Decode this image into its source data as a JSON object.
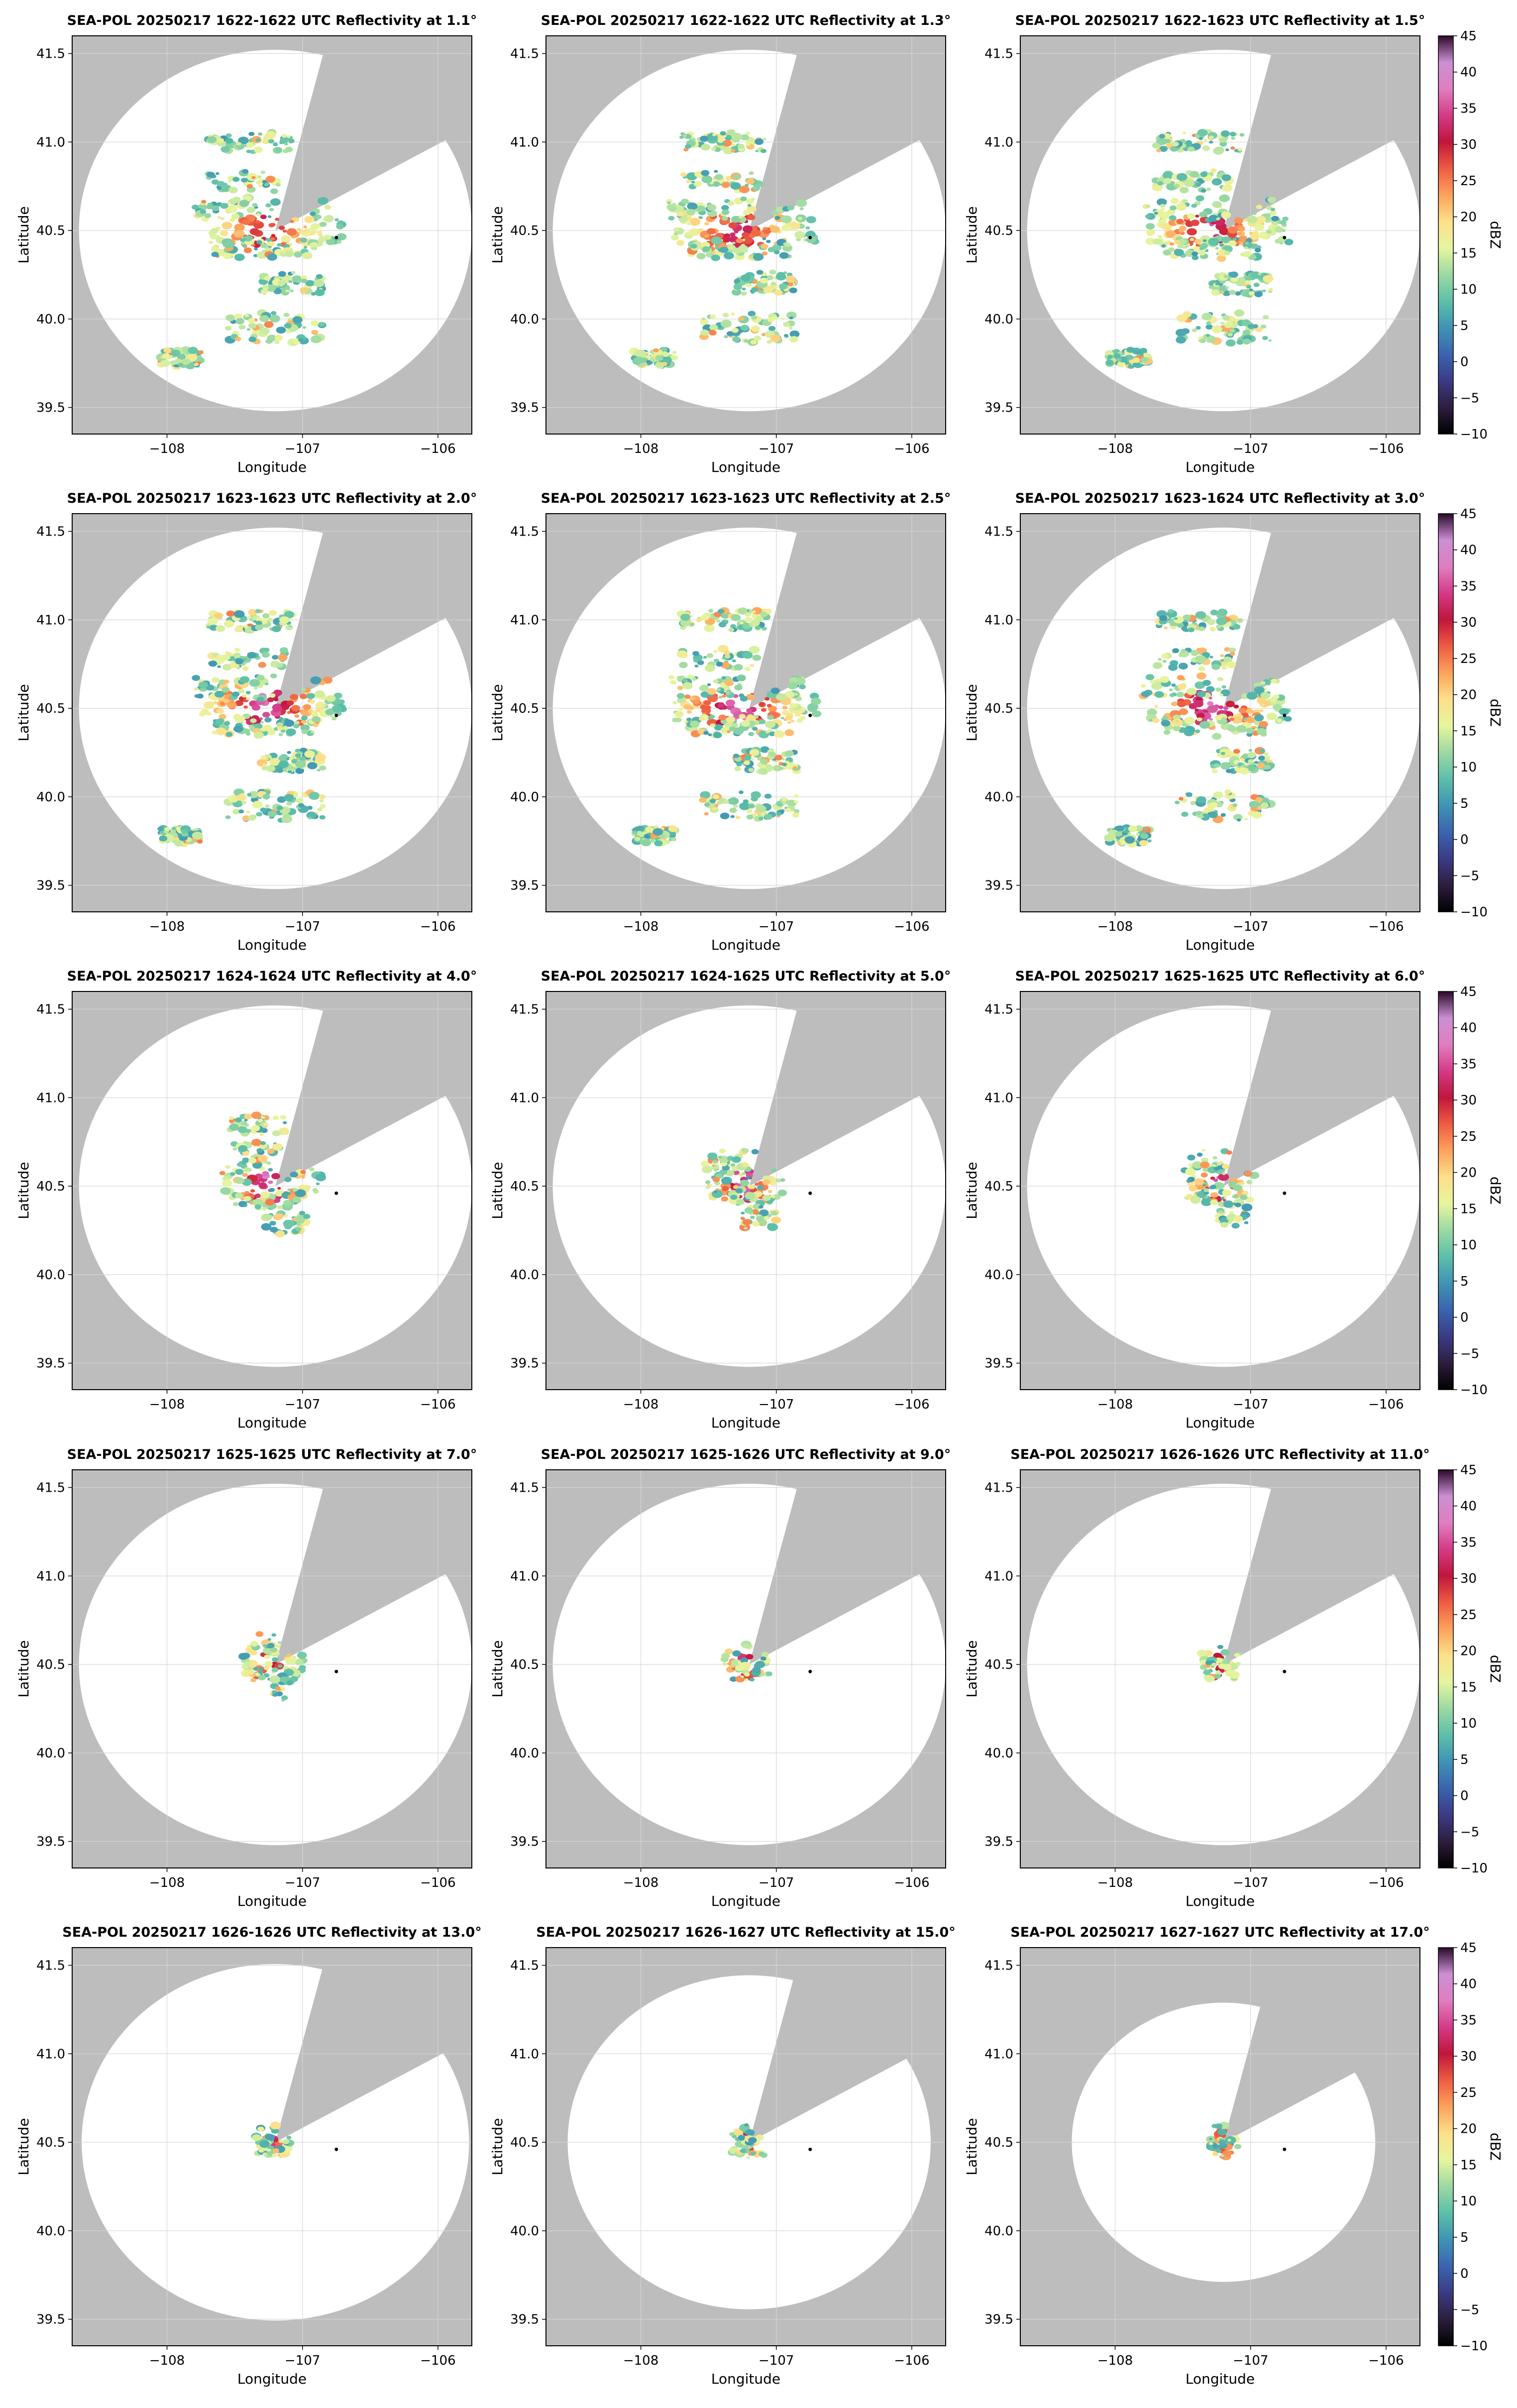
{
  "figure": {
    "radar": "SEA-POL",
    "field": "Reflectivity",
    "units": "dBZ"
  },
  "chart_data": {
    "type": "heatmap",
    "xlabel": "Longitude",
    "ylabel": "Latitude",
    "xlim": [
      -108.7,
      -105.75
    ],
    "ylim": [
      39.35,
      41.6
    ],
    "xticks": [
      -108,
      -107,
      -106
    ],
    "xtick_labels": [
      "−108",
      "−107",
      "−106"
    ],
    "yticks": [
      39.5,
      40.0,
      40.5,
      41.0,
      41.5
    ],
    "ytick_labels": [
      "39.5",
      "40.0",
      "40.5",
      "41.0",
      "41.5"
    ],
    "radar_location": {
      "lon": -107.2,
      "lat": 40.5
    },
    "marker_location": {
      "lon": -106.75,
      "lat": 40.46
    },
    "colorbar": {
      "label": "dBZ",
      "min": -10,
      "max": 45,
      "ticks": [
        45,
        40,
        35,
        30,
        25,
        20,
        15,
        10,
        5,
        0,
        -5,
        -10
      ],
      "tick_labels": [
        "45",
        "40",
        "35",
        "30",
        "25",
        "20",
        "15",
        "10",
        "5",
        "0",
        "−5",
        "−10"
      ],
      "colors": [
        "#000000",
        "#2d1e3e",
        "#3b3b85",
        "#3a64b0",
        "#3f93b5",
        "#5cbfa9",
        "#9bd9a3",
        "#e6f59e",
        "#fde08b",
        "#fca35c",
        "#ee5c42",
        "#c0163c",
        "#d43a86",
        "#e07ec0",
        "#cc8fd4",
        "#2a0a2a"
      ]
    },
    "panels": [
      {
        "title": "SEA-POL 20250217 1622-1622 UTC Reflectivity at 1.1°",
        "elevation_deg": 1.1,
        "range_deg": 1.45,
        "echo_extent": 0.9,
        "echo_intensity": 0.65
      },
      {
        "title": "SEA-POL 20250217 1622-1622 UTC Reflectivity at 1.3°",
        "elevation_deg": 1.3,
        "range_deg": 1.45,
        "echo_extent": 0.95,
        "echo_intensity": 0.7
      },
      {
        "title": "SEA-POL 20250217 1622-1623 UTC Reflectivity at 1.5°",
        "elevation_deg": 1.5,
        "range_deg": 1.45,
        "echo_extent": 1.0,
        "echo_intensity": 0.75
      },
      {
        "title": "SEA-POL 20250217 1623-1623 UTC Reflectivity at 2.0°",
        "elevation_deg": 2.0,
        "range_deg": 1.45,
        "echo_extent": 1.0,
        "echo_intensity": 0.85
      },
      {
        "title": "SEA-POL 20250217 1623-1623 UTC Reflectivity at 2.5°",
        "elevation_deg": 2.5,
        "range_deg": 1.45,
        "echo_extent": 0.95,
        "echo_intensity": 0.9
      },
      {
        "title": "SEA-POL 20250217 1623-1624 UTC Reflectivity at 3.0°",
        "elevation_deg": 3.0,
        "range_deg": 1.45,
        "echo_extent": 0.85,
        "echo_intensity": 0.9
      },
      {
        "title": "SEA-POL 20250217 1624-1624 UTC Reflectivity at 4.0°",
        "elevation_deg": 4.0,
        "range_deg": 1.45,
        "echo_extent": 0.55,
        "echo_intensity": 0.9
      },
      {
        "title": "SEA-POL 20250217 1624-1625 UTC Reflectivity at 5.0°",
        "elevation_deg": 5.0,
        "range_deg": 1.45,
        "echo_extent": 0.45,
        "echo_intensity": 0.85
      },
      {
        "title": "SEA-POL 20250217 1625-1625 UTC Reflectivity at 6.0°",
        "elevation_deg": 6.0,
        "range_deg": 1.45,
        "echo_extent": 0.38,
        "echo_intensity": 0.8
      },
      {
        "title": "SEA-POL 20250217 1625-1625 UTC Reflectivity at 7.0°",
        "elevation_deg": 7.0,
        "range_deg": 1.45,
        "echo_extent": 0.3,
        "echo_intensity": 0.8
      },
      {
        "title": "SEA-POL 20250217 1625-1626 UTC Reflectivity at 9.0°",
        "elevation_deg": 9.0,
        "range_deg": 1.45,
        "echo_extent": 0.22,
        "echo_intensity": 0.75
      },
      {
        "title": "SEA-POL 20250217 1626-1626 UTC Reflectivity at 11.0°",
        "elevation_deg": 11.0,
        "range_deg": 1.45,
        "echo_extent": 0.17,
        "echo_intensity": 0.7
      },
      {
        "title": "SEA-POL 20250217 1626-1626 UTC Reflectivity at 13.0°",
        "elevation_deg": 13.0,
        "range_deg": 1.43,
        "echo_extent": 0.13,
        "echo_intensity": 0.7
      },
      {
        "title": "SEA-POL 20250217 1626-1627 UTC Reflectivity at 15.0°",
        "elevation_deg": 15.0,
        "range_deg": 1.34,
        "echo_extent": 0.12,
        "echo_intensity": 0.65
      },
      {
        "title": "SEA-POL 20250217 1627-1627 UTC Reflectivity at 17.0°",
        "elevation_deg": 17.0,
        "range_deg": 1.12,
        "echo_extent": 0.11,
        "echo_intensity": 0.6
      }
    ]
  }
}
